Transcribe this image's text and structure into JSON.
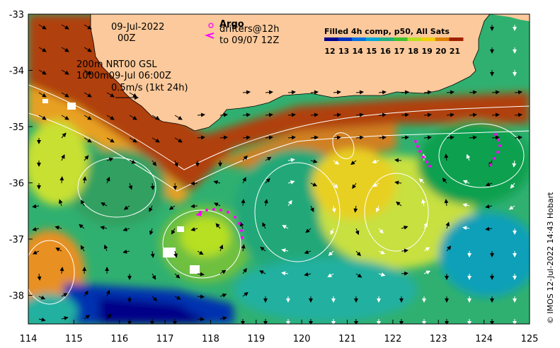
{
  "map": {
    "x_ticks": [
      "114",
      "115",
      "116",
      "117",
      "118",
      "119",
      "120",
      "121",
      "122",
      "123",
      "124",
      "125"
    ],
    "y_ticks": [
      "-33",
      "-34",
      "-35",
      "-36",
      "-37",
      "-38"
    ],
    "annotations": {
      "date": "09-Jul-2022",
      "hour": "00Z",
      "contour_line1": "200m  NRT00 GSL",
      "contour_line2": "1000m09-Jul 06:00Z",
      "scale_text": "0.5m/s (1kt 24h)"
    },
    "argo_label": "Argo",
    "drifters_line1": "drifters@12h",
    "drifters_line2": "to 09/07 12Z",
    "legend": {
      "title": "Filled 4h comp, p50, All Sats",
      "values": [
        "12",
        "13",
        "14",
        "15",
        "16",
        "17",
        "18",
        "19",
        "20",
        "21"
      ],
      "colors": [
        "#00008b",
        "#0030c0",
        "#0070e0",
        "#00a8d8",
        "#20b080",
        "#40c030",
        "#b8e020",
        "#f0d000",
        "#e08000",
        "#a02000"
      ]
    },
    "credit": "© IMOS 12-Jul-2022 14:43 Hobart",
    "colors": {
      "land": "#fbc99b",
      "drifter": "#ff00ff",
      "vector": "#000000",
      "contour": "#ffffff"
    }
  }
}
